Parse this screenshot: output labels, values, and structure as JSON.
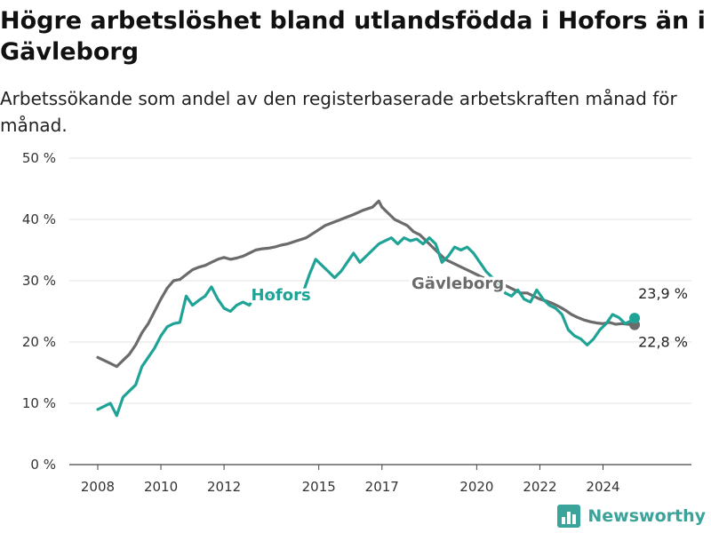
{
  "chart_data": {
    "type": "line",
    "title": "Högre arbetslöshet bland utlandsfödda i Hofors än i Gävleborg",
    "subtitle": "Arbetssökande som andel av den registerbaserade arbetskraften månad för månad.",
    "xlabel": "",
    "ylabel": "",
    "x_ticks": [
      "2008",
      "2010",
      "2012",
      "2015",
      "2017",
      "2020",
      "2022",
      "2024"
    ],
    "y_ticks": [
      "0 %",
      "10 %",
      "20 %",
      "30 %",
      "40 %",
      "50 %"
    ],
    "ylim": [
      0,
      50
    ],
    "xlim": [
      2007.1,
      2026.8
    ],
    "grid": true,
    "series": [
      {
        "name": "Gävleborg",
        "color": "#6b6b6b",
        "end_label": "22,8 %",
        "points": [
          [
            2008.0,
            17.5
          ],
          [
            2008.2,
            17.0
          ],
          [
            2008.4,
            16.5
          ],
          [
            2008.6,
            16.0
          ],
          [
            2008.8,
            17.0
          ],
          [
            2009.0,
            18.0
          ],
          [
            2009.2,
            19.5
          ],
          [
            2009.4,
            21.5
          ],
          [
            2009.6,
            23.0
          ],
          [
            2009.8,
            25.0
          ],
          [
            2010.0,
            27.0
          ],
          [
            2010.2,
            28.8
          ],
          [
            2010.4,
            30.0
          ],
          [
            2010.6,
            30.2
          ],
          [
            2010.8,
            31.0
          ],
          [
            2011.0,
            31.8
          ],
          [
            2011.2,
            32.2
          ],
          [
            2011.4,
            32.5
          ],
          [
            2011.6,
            33.0
          ],
          [
            2011.8,
            33.5
          ],
          [
            2012.0,
            33.8
          ],
          [
            2012.2,
            33.5
          ],
          [
            2012.4,
            33.7
          ],
          [
            2012.6,
            34.0
          ],
          [
            2012.8,
            34.5
          ],
          [
            2013.0,
            35.0
          ],
          [
            2013.2,
            35.2
          ],
          [
            2013.4,
            35.3
          ],
          [
            2013.6,
            35.5
          ],
          [
            2013.8,
            35.8
          ],
          [
            2014.0,
            36.0
          ],
          [
            2014.3,
            36.5
          ],
          [
            2014.6,
            37.0
          ],
          [
            2014.9,
            38.0
          ],
          [
            2015.2,
            39.0
          ],
          [
            2015.5,
            39.6
          ],
          [
            2015.8,
            40.2
          ],
          [
            2016.1,
            40.8
          ],
          [
            2016.4,
            41.5
          ],
          [
            2016.7,
            42.0
          ],
          [
            2016.9,
            43.0
          ],
          [
            2017.0,
            42.0
          ],
          [
            2017.2,
            41.0
          ],
          [
            2017.4,
            40.0
          ],
          [
            2017.6,
            39.5
          ],
          [
            2017.8,
            39.0
          ],
          [
            2018.0,
            38.0
          ],
          [
            2018.2,
            37.5
          ],
          [
            2018.4,
            36.5
          ],
          [
            2018.6,
            35.5
          ],
          [
            2018.8,
            34.5
          ],
          [
            2019.0,
            33.5
          ],
          [
            2019.2,
            33.0
          ],
          [
            2019.4,
            32.5
          ],
          [
            2019.6,
            32.0
          ],
          [
            2019.8,
            31.5
          ],
          [
            2020.0,
            31.0
          ],
          [
            2020.2,
            30.5
          ],
          [
            2020.4,
            30.0
          ],
          [
            2020.6,
            30.2
          ],
          [
            2020.8,
            29.5
          ],
          [
            2021.0,
            29.0
          ],
          [
            2021.2,
            28.5
          ],
          [
            2021.4,
            28.0
          ],
          [
            2021.6,
            28.0
          ],
          [
            2021.8,
            27.5
          ],
          [
            2022.0,
            27.0
          ],
          [
            2022.2,
            26.7
          ],
          [
            2022.4,
            26.3
          ],
          [
            2022.6,
            25.8
          ],
          [
            2022.8,
            25.2
          ],
          [
            2023.0,
            24.5
          ],
          [
            2023.2,
            24.0
          ],
          [
            2023.4,
            23.6
          ],
          [
            2023.6,
            23.3
          ],
          [
            2023.8,
            23.1
          ],
          [
            2024.0,
            23.0
          ],
          [
            2024.2,
            23.2
          ],
          [
            2024.4,
            22.9
          ],
          [
            2024.6,
            23.0
          ],
          [
            2024.8,
            22.9
          ],
          [
            2025.0,
            22.8
          ]
        ]
      },
      {
        "name": "Hofors",
        "color": "#1fa396",
        "end_label": "23,9 %",
        "points": [
          [
            2008.0,
            9.0
          ],
          [
            2008.2,
            9.5
          ],
          [
            2008.4,
            10.0
          ],
          [
            2008.6,
            8.0
          ],
          [
            2008.8,
            11.0
          ],
          [
            2009.0,
            12.0
          ],
          [
            2009.2,
            13.0
          ],
          [
            2009.4,
            16.0
          ],
          [
            2009.6,
            17.5
          ],
          [
            2009.8,
            19.0
          ],
          [
            2010.0,
            21.0
          ],
          [
            2010.2,
            22.5
          ],
          [
            2010.4,
            23.0
          ],
          [
            2010.6,
            23.2
          ],
          [
            2010.8,
            27.5
          ],
          [
            2011.0,
            26.0
          ],
          [
            2011.2,
            26.8
          ],
          [
            2011.4,
            27.5
          ],
          [
            2011.6,
            29.0
          ],
          [
            2011.8,
            27.0
          ],
          [
            2012.0,
            25.5
          ],
          [
            2012.2,
            25.0
          ],
          [
            2012.4,
            26.0
          ],
          [
            2012.6,
            26.5
          ],
          [
            2012.8,
            26.0
          ],
          [
            2013.0,
            27.5
          ],
          [
            2014.5,
            28.0
          ],
          [
            2014.7,
            31.0
          ],
          [
            2014.9,
            33.5
          ],
          [
            2015.1,
            32.5
          ],
          [
            2015.3,
            31.5
          ],
          [
            2015.5,
            30.5
          ],
          [
            2015.7,
            31.5
          ],
          [
            2015.9,
            33.0
          ],
          [
            2016.1,
            34.5
          ],
          [
            2016.3,
            33.0
          ],
          [
            2016.5,
            34.0
          ],
          [
            2016.7,
            35.0
          ],
          [
            2016.9,
            36.0
          ],
          [
            2017.1,
            36.5
          ],
          [
            2017.3,
            37.0
          ],
          [
            2017.5,
            36.0
          ],
          [
            2017.7,
            37.0
          ],
          [
            2017.9,
            36.5
          ],
          [
            2018.1,
            36.8
          ],
          [
            2018.3,
            36.0
          ],
          [
            2018.5,
            37.0
          ],
          [
            2018.7,
            36.0
          ],
          [
            2018.9,
            33.0
          ],
          [
            2019.1,
            34.0
          ],
          [
            2019.3,
            35.5
          ],
          [
            2019.5,
            35.0
          ],
          [
            2019.7,
            35.5
          ],
          [
            2019.9,
            34.5
          ],
          [
            2020.1,
            33.0
          ],
          [
            2020.3,
            31.5
          ],
          [
            2020.5,
            30.5
          ],
          [
            2020.7,
            29.5
          ],
          [
            2020.9,
            28.0
          ],
          [
            2021.1,
            27.5
          ],
          [
            2021.3,
            28.5
          ],
          [
            2021.5,
            27.0
          ],
          [
            2021.7,
            26.5
          ],
          [
            2021.9,
            28.5
          ],
          [
            2022.1,
            27.0
          ],
          [
            2022.3,
            26.0
          ],
          [
            2022.5,
            25.5
          ],
          [
            2022.7,
            24.5
          ],
          [
            2022.9,
            22.0
          ],
          [
            2023.1,
            21.0
          ],
          [
            2023.3,
            20.5
          ],
          [
            2023.5,
            19.5
          ],
          [
            2023.7,
            20.5
          ],
          [
            2023.9,
            22.0
          ],
          [
            2024.1,
            23.0
          ],
          [
            2024.3,
            24.5
          ],
          [
            2024.5,
            24.0
          ],
          [
            2024.7,
            23.0
          ],
          [
            2024.9,
            23.5
          ],
          [
            2025.0,
            23.9
          ]
        ]
      }
    ]
  },
  "brand": {
    "name": "Newsworthy",
    "icon": "bar-chart-logo-icon"
  }
}
